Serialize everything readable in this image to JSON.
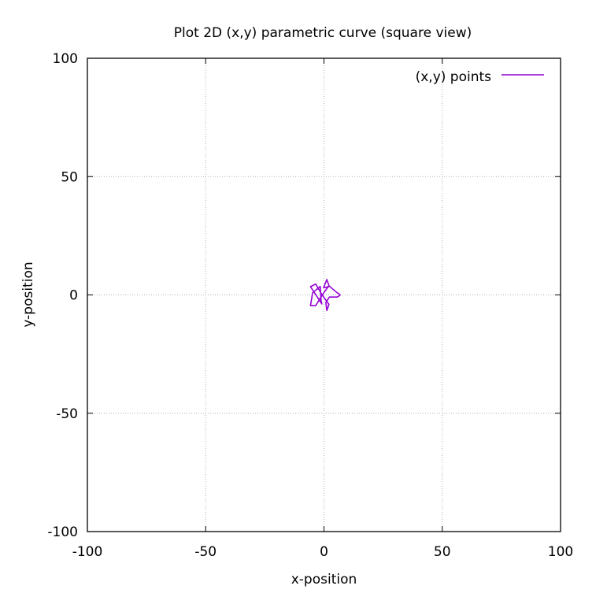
{
  "chart_data": {
    "type": "line",
    "title": "Plot 2D (x,y) parametric curve (square view)",
    "xlabel": "x-position",
    "ylabel": "y-position",
    "xlim": [
      -100,
      100
    ],
    "ylim": [
      -100,
      100
    ],
    "xticks": [
      -100,
      -50,
      0,
      50,
      100
    ],
    "yticks": [
      -100,
      -50,
      0,
      50,
      100
    ],
    "xtick_labels": [
      "-100",
      "-50",
      "0",
      "50",
      "100"
    ],
    "ytick_labels": [
      "-100",
      "-50",
      "0",
      "50",
      "100"
    ],
    "grid": true,
    "legend_position": "top-right",
    "series": [
      {
        "name": "(x,y) points",
        "color": "#9400d3",
        "x": [
          7.0,
          5.6,
          2.4,
          -0.2,
          1.2,
          2.1,
          -0.9,
          -3.5,
          -5.7,
          -4.8,
          -1.6,
          -1.4,
          -1.2,
          -0.9,
          -5.7,
          -3.5,
          -0.9,
          2.1,
          1.2,
          0.8,
          2.3,
          5.6,
          7.0
        ],
        "y": [
          0.0,
          0.9,
          3.6,
          3.0,
          6.5,
          4.0,
          -0.3,
          -4.5,
          -4.5,
          0.9,
          3.6,
          1.0,
          -2.6,
          -3.8,
          3.5,
          4.6,
          0.2,
          -4.0,
          -6.6,
          -3.2,
          -0.9,
          -0.9,
          0.0
        ]
      }
    ]
  }
}
